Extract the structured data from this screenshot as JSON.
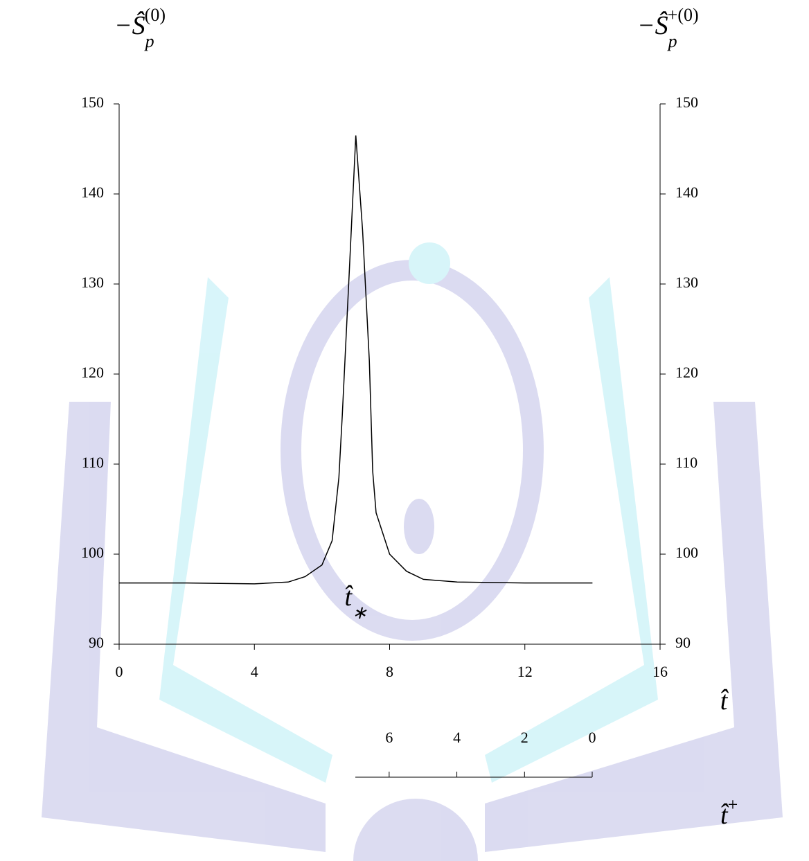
{
  "chart_data": {
    "type": "line",
    "y_label": {
      "main": "−Ŝ",
      "sub": "p",
      "sup": "(0)"
    },
    "y2_label": {
      "main": "−Ŝ",
      "sub": "p",
      "sup": "+(0)"
    },
    "x_label": {
      "main": "t̂"
    },
    "x2_label": {
      "main": "t̂",
      "sup": "+"
    },
    "annotation": {
      "main": "t̂",
      "sub": "∗",
      "x": 7
    },
    "xlim": [
      0,
      16
    ],
    "xticks": [
      0,
      4,
      8,
      12,
      16
    ],
    "x2lim": [
      7,
      0
    ],
    "x2ticks": [
      6,
      4,
      2,
      0
    ],
    "ylim": [
      90,
      150
    ],
    "yticks": [
      90,
      100,
      110,
      120,
      130,
      140,
      150
    ],
    "y2lim": [
      90,
      150
    ],
    "y2ticks": [
      90,
      100,
      110,
      120,
      130,
      140,
      150
    ],
    "series": [
      {
        "color": "#000000",
        "x": [
          0,
          2,
          4,
          5,
          5.5,
          6,
          6.3,
          6.5,
          6.6,
          6.8,
          7,
          7.2,
          7.4,
          7.5,
          7.6,
          8,
          8.5,
          9,
          10,
          12,
          14
        ],
        "values": [
          96.8,
          96.8,
          96.7,
          96.9,
          97.5,
          98.8,
          101.5,
          108.5,
          115.4,
          130.8,
          146.5,
          136,
          121.5,
          109.2,
          104.6,
          100,
          98.1,
          97.2,
          96.9,
          96.8,
          96.8
        ]
      }
    ]
  }
}
